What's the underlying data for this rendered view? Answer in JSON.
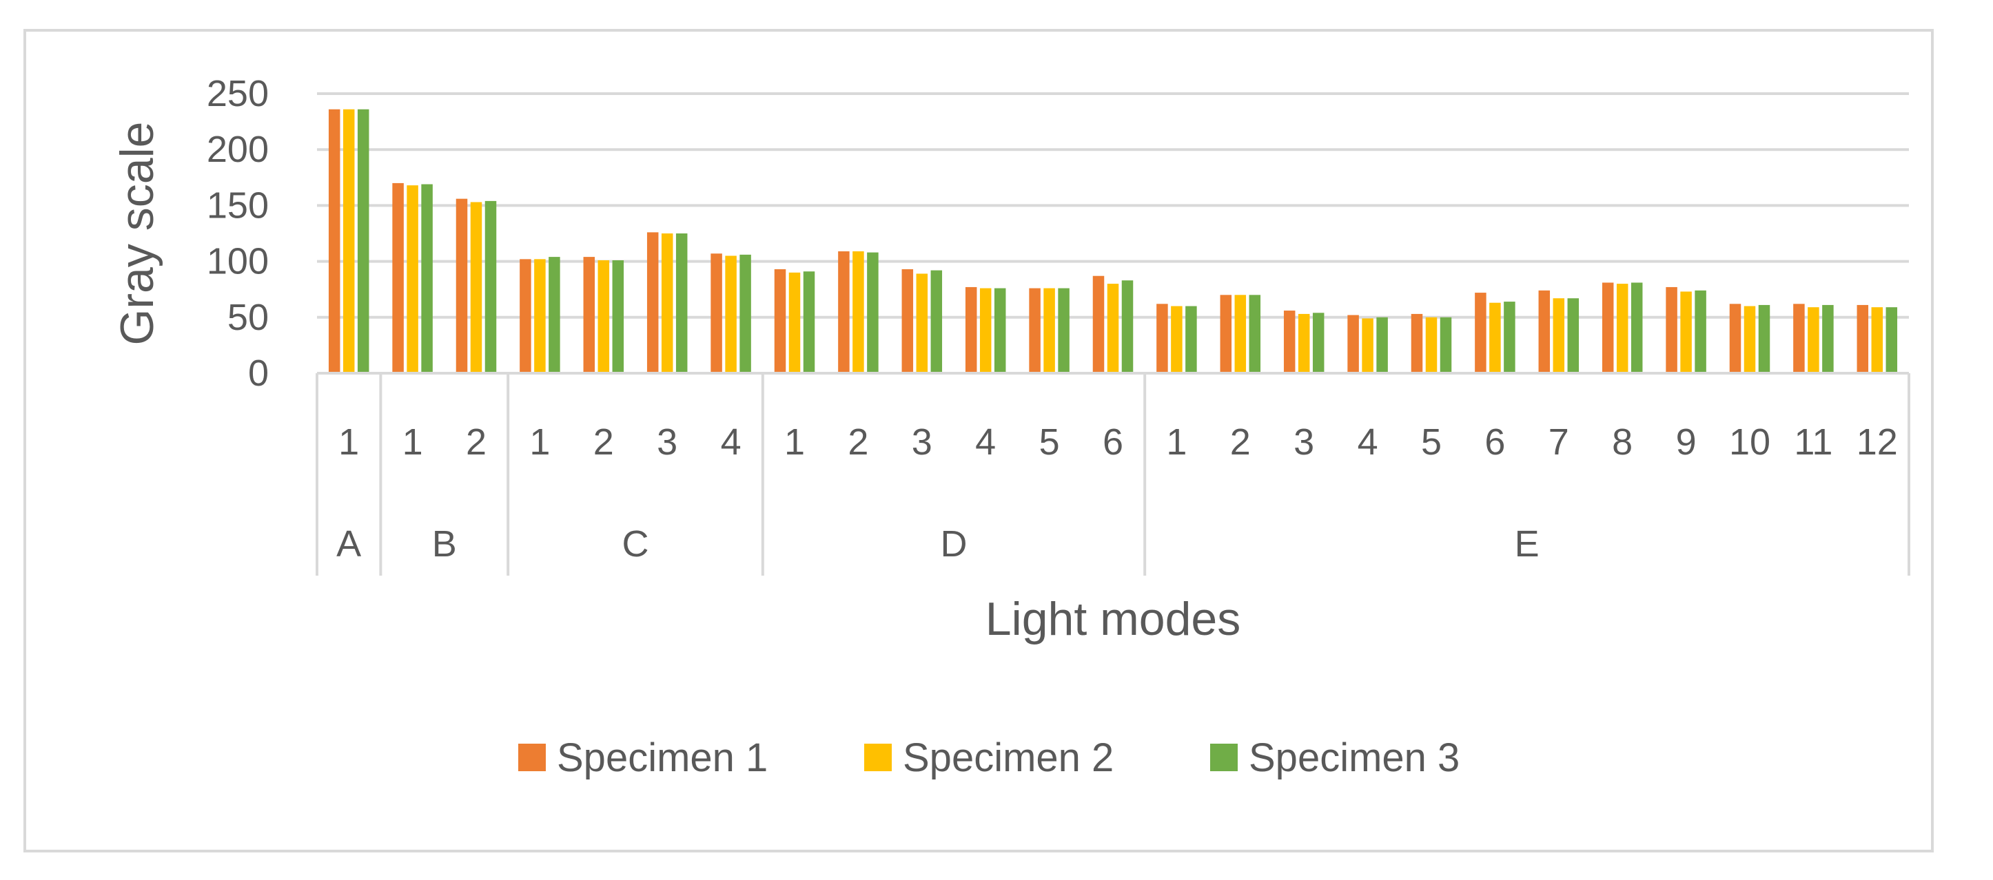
{
  "chart_data": {
    "type": "bar",
    "title": "",
    "ylabel": "Gray scale",
    "xlabel": "Light modes",
    "ylim": [
      0,
      250
    ],
    "yticks": [
      0,
      50,
      100,
      150,
      200,
      250
    ],
    "grid": true,
    "legend_position": "bottom",
    "groups": [
      {
        "label": "A",
        "categories": [
          "1"
        ]
      },
      {
        "label": "B",
        "categories": [
          "1",
          "2"
        ]
      },
      {
        "label": "C",
        "categories": [
          "1",
          "2",
          "3",
          "4"
        ]
      },
      {
        "label": "D",
        "categories": [
          "1",
          "2",
          "3",
          "4",
          "5",
          "6"
        ]
      },
      {
        "label": "E",
        "categories": [
          "1",
          "2",
          "3",
          "4",
          "5",
          "6",
          "7",
          "8",
          "9",
          "10",
          "11",
          "12"
        ]
      }
    ],
    "series": [
      {
        "name": "Specimen 1",
        "color": "#ed7d31",
        "values": [
          236,
          170,
          156,
          102,
          104,
          126,
          107,
          93,
          109,
          93,
          77,
          76,
          87,
          62,
          70,
          56,
          52,
          53,
          72,
          74,
          81,
          77,
          62,
          62,
          61
        ]
      },
      {
        "name": "Specimen 2",
        "color": "#ffc000",
        "values": [
          236,
          168,
          153,
          102,
          101,
          125,
          105,
          90,
          109,
          89,
          76,
          76,
          80,
          60,
          70,
          53,
          49,
          50,
          63,
          67,
          80,
          73,
          60,
          59,
          59
        ]
      },
      {
        "name": "Specimen 3",
        "color": "#70ad47",
        "values": [
          236,
          169,
          154,
          104,
          101,
          125,
          106,
          91,
          108,
          92,
          76,
          76,
          83,
          60,
          70,
          54,
          50,
          50,
          64,
          67,
          81,
          74,
          61,
          61,
          59
        ]
      }
    ]
  }
}
